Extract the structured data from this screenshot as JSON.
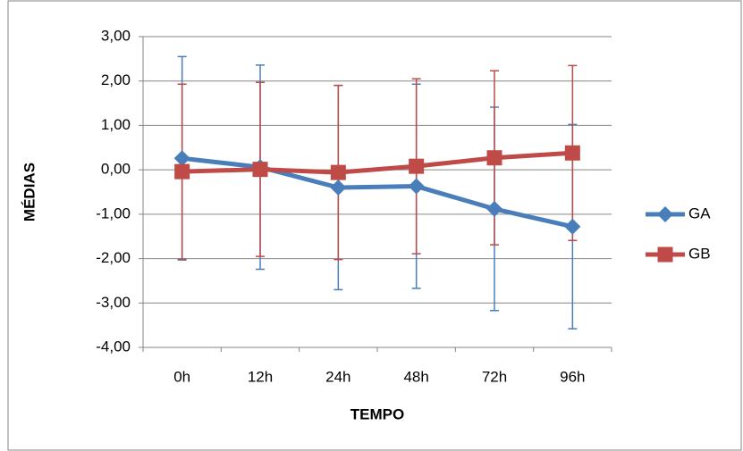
{
  "chart_data": {
    "type": "line",
    "x_label": "TEMPO",
    "y_label": "MÉDIAS",
    "categories": [
      "0h",
      "12h",
      "24h",
      "48h",
      "72h",
      "96h"
    ],
    "series": [
      {
        "name": "GA",
        "color": "#4a7ebb",
        "marker": "diamond",
        "values": [
          0.26,
          0.06,
          -0.4,
          -0.37,
          -0.88,
          -1.28
        ],
        "errors": [
          2.29,
          2.3,
          2.3,
          2.3,
          2.29,
          2.3
        ]
      },
      {
        "name": "GB",
        "color": "#be4b48",
        "marker": "square",
        "values": [
          -0.04,
          0.01,
          -0.06,
          0.08,
          0.27,
          0.38
        ],
        "errors": [
          1.97,
          1.96,
          1.96,
          1.97,
          1.96,
          1.97
        ]
      }
    ],
    "ylim": [
      -4,
      3
    ],
    "yticks": [
      {
        "value": -4,
        "label": "-4,00"
      },
      {
        "value": -3,
        "label": "-3,00"
      },
      {
        "value": -2,
        "label": "-2,00"
      },
      {
        "value": -1,
        "label": "-1,00"
      },
      {
        "value": 0,
        "label": "0,00"
      },
      {
        "value": 1,
        "label": "1,00"
      },
      {
        "value": 2,
        "label": "2,00"
      },
      {
        "value": 3,
        "label": "3,00"
      }
    ],
    "grid": true,
    "legend": "right"
  }
}
